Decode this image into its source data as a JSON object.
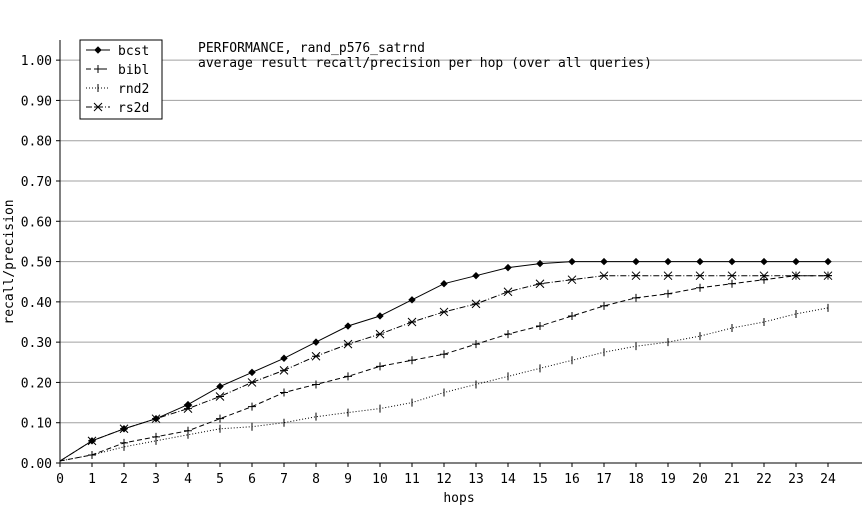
{
  "chart_data": {
    "type": "line",
    "title": "PERFORMANCE, rand_p576_satrnd",
    "subtitle": "average result recall/precision per hop (over all queries)",
    "xlabel": "hops",
    "ylabel": "recall/precision",
    "xlim": [
      0,
      24
    ],
    "ylim": [
      0,
      1.05
    ],
    "x": [
      0,
      1,
      2,
      3,
      4,
      5,
      6,
      7,
      8,
      9,
      10,
      11,
      12,
      13,
      14,
      15,
      16,
      17,
      18,
      19,
      20,
      21,
      22,
      23,
      24
    ],
    "yticks": [
      "0.00",
      "0.10",
      "0.20",
      "0.30",
      "0.40",
      "0.50",
      "0.60",
      "0.70",
      "0.80",
      "0.90",
      "1.00"
    ],
    "grid": "horizontal",
    "legend": "top-left",
    "series": [
      {
        "name": "bcst",
        "marker": "diamond-dot",
        "dash": "solid",
        "values": [
          0.005,
          0.055,
          0.085,
          0.11,
          0.145,
          0.19,
          0.225,
          0.26,
          0.3,
          0.34,
          0.365,
          0.405,
          0.445,
          0.465,
          0.485,
          0.495,
          0.5,
          0.5,
          0.5,
          0.5,
          0.5,
          0.5,
          0.5,
          0.5,
          0.5
        ]
      },
      {
        "name": "bibl",
        "marker": "plus",
        "dash": "dashed",
        "values": [
          0.005,
          0.02,
          0.05,
          0.065,
          0.08,
          0.11,
          0.14,
          0.175,
          0.195,
          0.215,
          0.24,
          0.255,
          0.27,
          0.295,
          0.32,
          0.34,
          0.365,
          0.39,
          0.41,
          0.42,
          0.435,
          0.445,
          0.455,
          0.465,
          0.465
        ]
      },
      {
        "name": "rnd2",
        "marker": "tick",
        "dash": "dotted",
        "values": [
          0.005,
          0.02,
          0.04,
          0.055,
          0.07,
          0.085,
          0.09,
          0.1,
          0.115,
          0.125,
          0.135,
          0.15,
          0.175,
          0.195,
          0.215,
          0.235,
          0.255,
          0.275,
          0.29,
          0.3,
          0.315,
          0.335,
          0.35,
          0.37,
          0.385
        ]
      },
      {
        "name": "rs2d",
        "marker": "star",
        "dash": "dash-dot",
        "values": [
          0.005,
          0.055,
          0.085,
          0.11,
          0.135,
          0.165,
          0.2,
          0.23,
          0.265,
          0.295,
          0.32,
          0.35,
          0.375,
          0.395,
          0.425,
          0.445,
          0.455,
          0.465,
          0.465,
          0.465,
          0.465,
          0.465,
          0.465,
          0.465,
          0.465
        ]
      }
    ]
  }
}
